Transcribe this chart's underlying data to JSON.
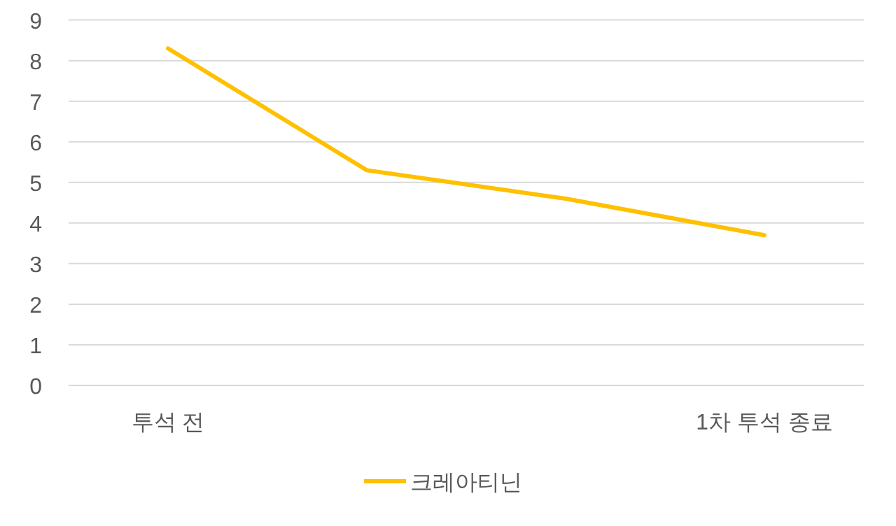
{
  "chart_data": {
    "type": "line",
    "categories": [
      "투석 전",
      null,
      null,
      "1차 투석 종료"
    ],
    "series": [
      {
        "name": "크레아티닌",
        "color": "#ffc000",
        "values": [
          8.3,
          5.3,
          4.6,
          3.7
        ]
      }
    ],
    "ylim": [
      0,
      9
    ],
    "yticks": [
      0,
      1,
      2,
      3,
      4,
      5,
      6,
      7,
      8,
      9
    ],
    "grid": "y",
    "legend": "bottom",
    "marker": "none",
    "line_style": "solid"
  }
}
